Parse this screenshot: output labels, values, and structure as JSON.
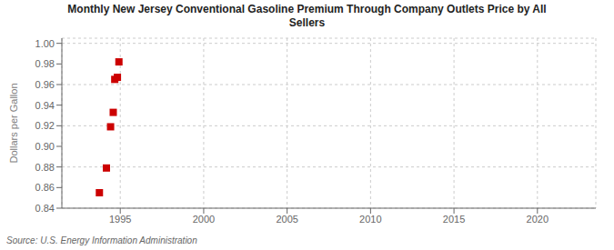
{
  "chart_data": {
    "type": "scatter",
    "title": "Monthly New Jersey Conventional Gasoline Premium Through Company Outlets Price by All\nSellers",
    "y_label": "Dollars per Gallon",
    "annotations": [
      "Source: U.S. Energy Information Administration"
    ],
    "x": [
      1993.75,
      1994.17,
      1994.42,
      1994.58,
      1994.67,
      1994.83,
      1994.92
    ],
    "values": [
      0.855,
      0.879,
      0.919,
      0.933,
      0.965,
      0.967,
      0.982
    ],
    "color": "#cc0000",
    "marker": "square",
    "xlim": [
      1991.5,
      2023.5
    ],
    "ylim": [
      0.84,
      1.005
    ],
    "xticks": [
      1995,
      2000,
      2005,
      2010,
      2015,
      2020
    ],
    "yticks": [
      0.84,
      0.86,
      0.88,
      {
        "value": 0.9,
        "label": "0.90"
      },
      0.92,
      0.94,
      0.96,
      0.98,
      {
        "value": 1.0,
        "label": "1.00"
      }
    ],
    "grid": true
  }
}
